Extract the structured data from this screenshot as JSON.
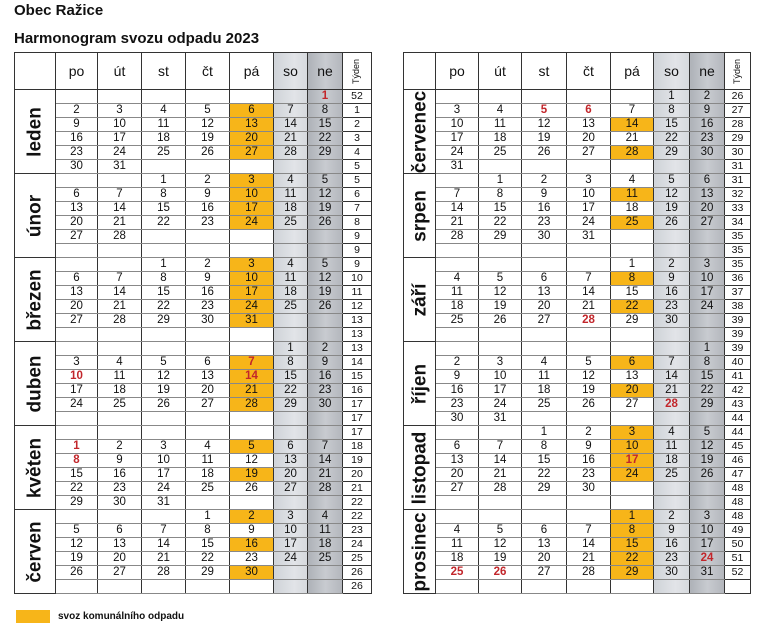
{
  "header": {
    "town": "Obec Ražice",
    "title": "Harmonogram svozu odpadu 2023"
  },
  "columns": [
    "po",
    "út",
    "st",
    "čt",
    "pá",
    "so",
    "ne"
  ],
  "week_label": "Týden",
  "colors": {
    "highlight": "#f7b519",
    "red": "#c2262b"
  },
  "legend": {
    "label": "svoz komunálního odpadu"
  },
  "tables": [
    {
      "months": [
        {
          "name": "leden",
          "rows": [
            [
              "",
              "",
              "",
              "",
              "",
              "",
              "1"
            ],
            [
              "2",
              "3",
              "4",
              "5",
              "6",
              "7",
              "8"
            ],
            [
              "9",
              "10",
              "11",
              "12",
              "13",
              "14",
              "15"
            ],
            [
              "16",
              "17",
              "18",
              "19",
              "20",
              "21",
              "22"
            ],
            [
              "23",
              "24",
              "25",
              "26",
              "27",
              "28",
              "29"
            ],
            [
              "30",
              "31",
              "",
              "",
              "",
              "",
              ""
            ]
          ],
          "weeks": [
            "52",
            "1",
            "2",
            "3",
            "4",
            "5"
          ],
          "highlight": [
            "6",
            "13",
            "20",
            "27"
          ],
          "red": [
            "1"
          ]
        },
        {
          "name": "únor",
          "rows": [
            [
              "",
              "",
              "1",
              "2",
              "3",
              "4",
              "5"
            ],
            [
              "6",
              "7",
              "8",
              "9",
              "10",
              "11",
              "12"
            ],
            [
              "13",
              "14",
              "15",
              "16",
              "17",
              "18",
              "19"
            ],
            [
              "20",
              "21",
              "22",
              "23",
              "24",
              "25",
              "26"
            ],
            [
              "27",
              "28",
              "",
              "",
              "",
              "",
              ""
            ],
            [
              "",
              "",
              "",
              "",
              "",
              "",
              ""
            ]
          ],
          "weeks": [
            "5",
            "6",
            "7",
            "8",
            "9",
            "9"
          ],
          "highlight": [
            "3",
            "10",
            "17",
            "24"
          ],
          "red": []
        },
        {
          "name": "březen",
          "rows": [
            [
              "",
              "",
              "1",
              "2",
              "3",
              "4",
              "5"
            ],
            [
              "6",
              "7",
              "8",
              "9",
              "10",
              "11",
              "12"
            ],
            [
              "13",
              "14",
              "15",
              "16",
              "17",
              "18",
              "19"
            ],
            [
              "20",
              "21",
              "22",
              "23",
              "24",
              "25",
              "26"
            ],
            [
              "27",
              "28",
              "29",
              "30",
              "31",
              "",
              ""
            ],
            [
              "",
              "",
              "",
              "",
              "",
              "",
              ""
            ]
          ],
          "weeks": [
            "9",
            "10",
            "11",
            "12",
            "13",
            "13"
          ],
          "highlight": [
            "3",
            "10",
            "17",
            "24",
            "31"
          ],
          "red": []
        },
        {
          "name": "duben",
          "rows": [
            [
              "",
              "",
              "",
              "",
              "",
              "1",
              "2"
            ],
            [
              "3",
              "4",
              "5",
              "6",
              "7",
              "8",
              "9"
            ],
            [
              "10",
              "11",
              "12",
              "13",
              "14",
              "15",
              "16"
            ],
            [
              "17",
              "18",
              "19",
              "20",
              "21",
              "22",
              "23"
            ],
            [
              "24",
              "25",
              "26",
              "27",
              "28",
              "29",
              "30"
            ],
            [
              "",
              "",
              "",
              "",
              "",
              "",
              ""
            ]
          ],
          "weeks": [
            "13",
            "14",
            "15",
            "16",
            "17",
            "17"
          ],
          "highlight": [
            "7",
            "14",
            "21",
            "28"
          ],
          "red": [
            "7",
            "10",
            "14"
          ]
        },
        {
          "name": "květen",
          "rows": [
            [
              "",
              "",
              "",
              "",
              "",
              "",
              ""
            ],
            [
              "1",
              "2",
              "3",
              "4",
              "5",
              "6",
              "7"
            ],
            [
              "8",
              "9",
              "10",
              "11",
              "12",
              "13",
              "14"
            ],
            [
              "15",
              "16",
              "17",
              "18",
              "19",
              "20",
              "21"
            ],
            [
              "22",
              "23",
              "24",
              "25",
              "26",
              "27",
              "28"
            ],
            [
              "29",
              "30",
              "31",
              "",
              "",
              "",
              ""
            ]
          ],
          "weeks": [
            "17",
            "18",
            "19",
            "20",
            "21",
            "22"
          ],
          "highlight": [
            "5",
            "19"
          ],
          "red": [
            "1",
            "8"
          ]
        },
        {
          "name": "červen",
          "rows": [
            [
              "",
              "",
              "",
              "1",
              "2",
              "3",
              "4"
            ],
            [
              "5",
              "6",
              "7",
              "8",
              "9",
              "10",
              "11"
            ],
            [
              "12",
              "13",
              "14",
              "15",
              "16",
              "17",
              "18"
            ],
            [
              "19",
              "20",
              "21",
              "22",
              "23",
              "24",
              "25"
            ],
            [
              "26",
              "27",
              "28",
              "29",
              "30",
              "",
              ""
            ],
            [
              "",
              "",
              "",
              "",
              "",
              "",
              ""
            ]
          ],
          "weeks": [
            "22",
            "23",
            "24",
            "25",
            "26",
            "26"
          ],
          "highlight": [
            "2",
            "16",
            "30"
          ],
          "red": []
        }
      ]
    },
    {
      "months": [
        {
          "name": "červenec",
          "rows": [
            [
              "",
              "",
              "",
              "",
              "",
              "1",
              "2"
            ],
            [
              "3",
              "4",
              "5",
              "6",
              "7",
              "8",
              "9"
            ],
            [
              "10",
              "11",
              "12",
              "13",
              "14",
              "15",
              "16"
            ],
            [
              "17",
              "18",
              "19",
              "20",
              "21",
              "22",
              "23"
            ],
            [
              "24",
              "25",
              "26",
              "27",
              "28",
              "29",
              "30"
            ],
            [
              "31",
              "",
              "",
              "",
              "",
              "",
              ""
            ]
          ],
          "weeks": [
            "26",
            "27",
            "28",
            "29",
            "30",
            "31"
          ],
          "highlight": [
            "14",
            "28"
          ],
          "red": [
            "5",
            "6"
          ]
        },
        {
          "name": "srpen",
          "rows": [
            [
              "",
              "1",
              "2",
              "3",
              "4",
              "5",
              "6"
            ],
            [
              "7",
              "8",
              "9",
              "10",
              "11",
              "12",
              "13"
            ],
            [
              "14",
              "15",
              "16",
              "17",
              "18",
              "19",
              "20"
            ],
            [
              "21",
              "22",
              "23",
              "24",
              "25",
              "26",
              "27"
            ],
            [
              "28",
              "29",
              "30",
              "31",
              "",
              "",
              ""
            ],
            [
              "",
              "",
              "",
              "",
              "",
              "",
              ""
            ]
          ],
          "weeks": [
            "31",
            "32",
            "33",
            "34",
            "35",
            "35"
          ],
          "highlight": [
            "11",
            "25"
          ],
          "red": []
        },
        {
          "name": "září",
          "rows": [
            [
              "",
              "",
              "",
              "",
              "1",
              "2",
              "3"
            ],
            [
              "4",
              "5",
              "6",
              "7",
              "8",
              "9",
              "10"
            ],
            [
              "11",
              "12",
              "13",
              "14",
              "15",
              "16",
              "17"
            ],
            [
              "18",
              "19",
              "20",
              "21",
              "22",
              "23",
              "24"
            ],
            [
              "25",
              "26",
              "27",
              "28",
              "29",
              "30",
              ""
            ],
            [
              "",
              "",
              "",
              "",
              "",
              "",
              ""
            ]
          ],
          "weeks": [
            "35",
            "36",
            "37",
            "38",
            "39",
            "39"
          ],
          "highlight": [
            "8",
            "22"
          ],
          "red": [
            "28"
          ]
        },
        {
          "name": "říjen",
          "rows": [
            [
              "",
              "",
              "",
              "",
              "",
              "",
              "1"
            ],
            [
              "2",
              "3",
              "4",
              "5",
              "6",
              "7",
              "8"
            ],
            [
              "9",
              "10",
              "11",
              "12",
              "13",
              "14",
              "15"
            ],
            [
              "16",
              "17",
              "18",
              "19",
              "20",
              "21",
              "22"
            ],
            [
              "23",
              "24",
              "25",
              "26",
              "27",
              "28",
              "29"
            ],
            [
              "30",
              "31",
              "",
              "",
              "",
              "",
              ""
            ]
          ],
          "weeks": [
            "39",
            "40",
            "41",
            "42",
            "43",
            "44"
          ],
          "highlight": [
            "6",
            "20"
          ],
          "red": [
            "28"
          ]
        },
        {
          "name": "listopad",
          "rows": [
            [
              "",
              "",
              "1",
              "2",
              "3",
              "4",
              "5"
            ],
            [
              "6",
              "7",
              "8",
              "9",
              "10",
              "11",
              "12"
            ],
            [
              "13",
              "14",
              "15",
              "16",
              "17",
              "18",
              "19"
            ],
            [
              "20",
              "21",
              "22",
              "23",
              "24",
              "25",
              "26"
            ],
            [
              "27",
              "28",
              "29",
              "30",
              "",
              "",
              ""
            ],
            [
              "",
              "",
              "",
              "",
              "",
              "",
              ""
            ]
          ],
          "weeks": [
            "44",
            "45",
            "46",
            "47",
            "48",
            "48"
          ],
          "highlight": [
            "3",
            "10",
            "17",
            "24"
          ],
          "red": [
            "17"
          ]
        },
        {
          "name": "prosinec",
          "rows": [
            [
              "",
              "",
              "",
              "",
              "1",
              "2",
              "3"
            ],
            [
              "4",
              "5",
              "6",
              "7",
              "8",
              "9",
              "10"
            ],
            [
              "11",
              "12",
              "13",
              "14",
              "15",
              "16",
              "17"
            ],
            [
              "18",
              "19",
              "20",
              "21",
              "22",
              "23",
              "24"
            ],
            [
              "25",
              "26",
              "27",
              "28",
              "29",
              "30",
              "31"
            ],
            [
              "",
              "",
              "",
              "",
              "",
              "",
              ""
            ]
          ],
          "weeks": [
            "48",
            "49",
            "50",
            "51",
            "52",
            ""
          ],
          "highlight": [
            "1",
            "8",
            "15",
            "22",
            "29"
          ],
          "red": [
            "24",
            "25",
            "26"
          ]
        }
      ]
    }
  ]
}
